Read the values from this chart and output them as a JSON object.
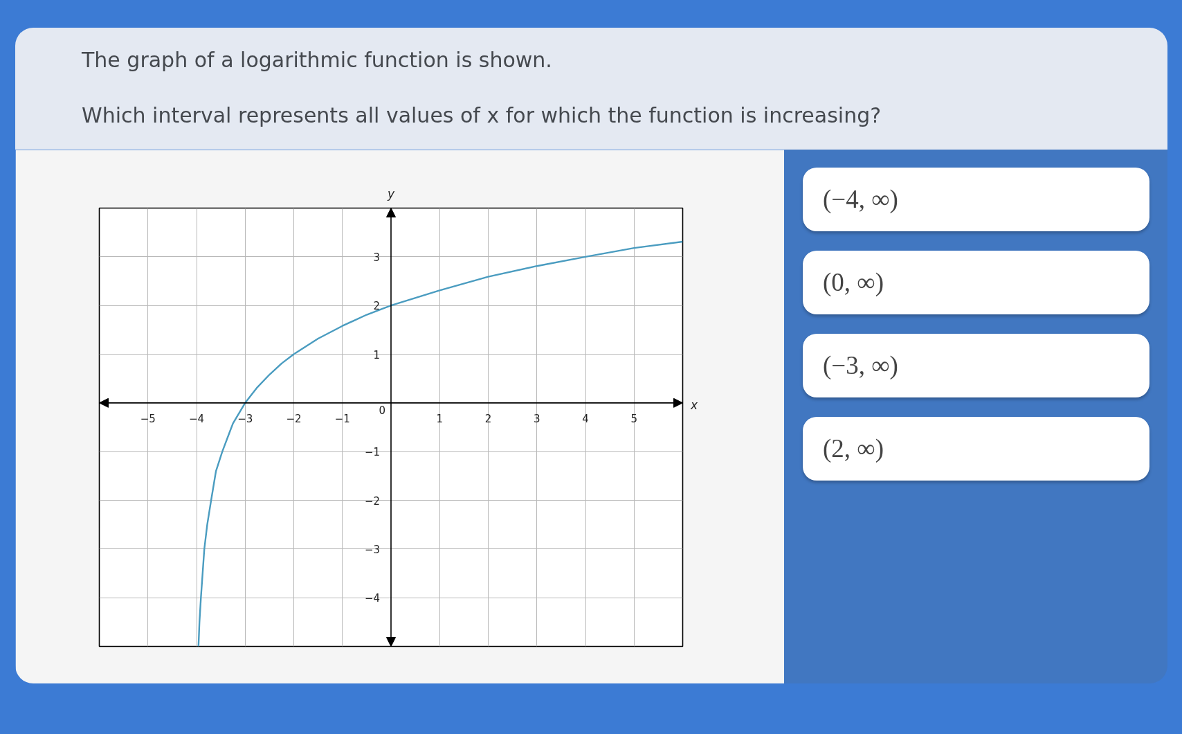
{
  "chart_data": {
    "type": "line",
    "title": "The graph of a logarithmic function is shown.",
    "subtitle": "Which interval represents all values of x for which the function is increasing?",
    "xlabel": "x",
    "ylabel": "y",
    "series": [
      {
        "color": "#4a9cc0",
        "x": [
          -3.96,
          -3.94,
          -3.91,
          -3.84,
          -3.78,
          -3.7,
          -3.6,
          -3.47,
          -3.3,
          -3.25,
          -3,
          -2.75,
          -2.5,
          -2.25,
          -2,
          -1.5,
          -1,
          -0.5,
          0,
          1,
          2,
          3,
          4,
          5,
          6
        ],
        "values": [
          -5,
          -4.5,
          -4,
          -3,
          -2.5,
          -2,
          -1.4,
          -1,
          -0.55,
          -0.42,
          0,
          0.32,
          0.58,
          0.81,
          1,
          1.32,
          1.58,
          1.81,
          2,
          2.31,
          2.59,
          2.81,
          3,
          3.18,
          3.31
        ]
      }
    ],
    "xlim": [
      -6,
      6
    ],
    "ylim": [
      -5,
      4
    ],
    "xticks": [
      {
        "value": -5,
        "label": "−5"
      },
      {
        "value": -4,
        "label": "−4"
      },
      {
        "value": -3,
        "label": "−3"
      },
      {
        "value": -2,
        "label": "−2"
      },
      {
        "value": -1,
        "label": "−1"
      },
      1,
      2,
      3,
      4,
      5
    ],
    "yticks": [
      {
        "value": -4,
        "label": "−4"
      },
      {
        "value": -3,
        "label": "−3"
      },
      {
        "value": -2,
        "label": "−2"
      },
      {
        "value": -1,
        "label": "−1"
      },
      1,
      2,
      3
    ],
    "grid": true,
    "annotations": [
      "0",
      "(−4, ∞)",
      "(0, ∞)",
      "(−3, ∞)",
      "(2, ∞)"
    ]
  }
}
